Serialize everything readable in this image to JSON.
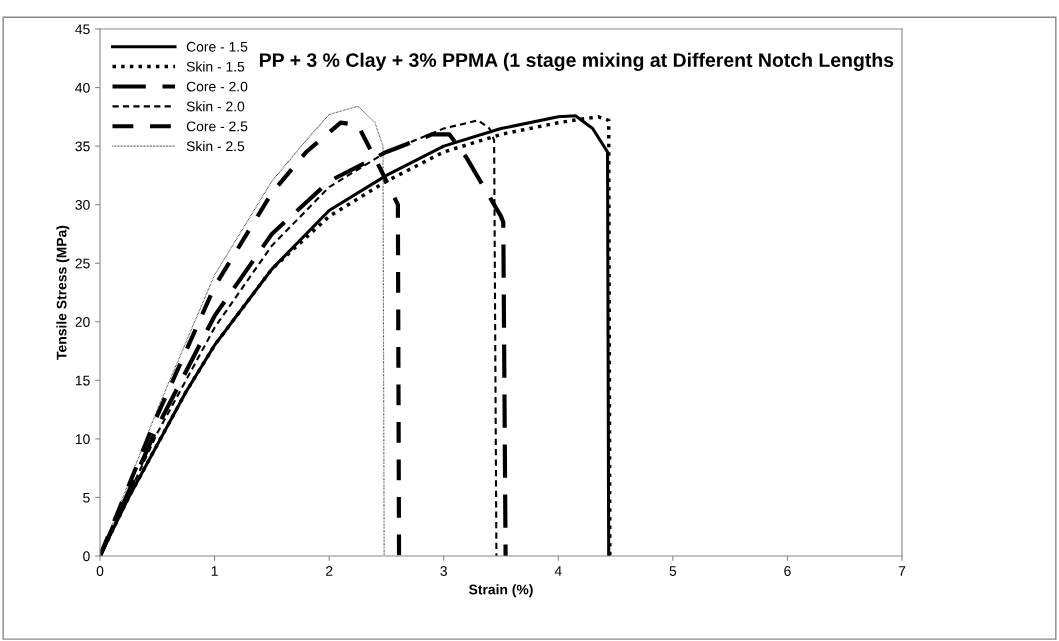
{
  "chart_data": {
    "type": "line",
    "title": "PP + 3 % Clay + 3% PPMA (1 stage mixing at Different Notch Lengths",
    "xlabel": "Strain (%)",
    "ylabel": "Tensile Stress (MPa)",
    "xlim": [
      0,
      7
    ],
    "xticks": [
      0,
      1,
      2,
      3,
      4,
      5,
      6,
      7
    ],
    "ylim": [
      0,
      45
    ],
    "yticks": [
      0,
      5,
      10,
      15,
      20,
      25,
      30,
      35,
      40,
      45
    ],
    "grid": false,
    "legend": "top left",
    "marker": "none",
    "series": [
      {
        "name": "Core - 1.5",
        "color": "#000000",
        "line_style": "solid",
        "x": [
          0,
          0.25,
          0.5,
          0.75,
          1,
          1.5,
          2,
          2.5,
          3,
          3.5,
          4,
          4.15,
          4.3,
          4.43,
          4.44
        ],
        "values": [
          0,
          5,
          9.5,
          14,
          18,
          24.5,
          29.5,
          32.5,
          35,
          36.5,
          37.5,
          37.6,
          36.5,
          34.5,
          0
        ]
      },
      {
        "name": "Skin - 1.5",
        "color": "#000000",
        "line_style": "dotted",
        "x": [
          0,
          0.25,
          0.5,
          0.75,
          1,
          1.5,
          2,
          2.5,
          3,
          3.5,
          4,
          4.2,
          4.35,
          4.44,
          4.45
        ],
        "values": [
          0,
          5,
          9.5,
          14,
          18,
          24.5,
          29,
          32,
          34.5,
          36,
          37,
          37.3,
          37.5,
          37.2,
          0
        ]
      },
      {
        "name": "Core - 2.0",
        "color": "#000000",
        "line_style": "dashed",
        "x": [
          0,
          0.25,
          0.5,
          1,
          1.5,
          2,
          2.5,
          2.9,
          3.05,
          3.2,
          3.5,
          3.52,
          3.54
        ],
        "values": [
          0,
          5.5,
          11,
          20.5,
          27.5,
          32,
          34.5,
          36,
          36,
          34,
          29,
          28.5,
          0
        ]
      },
      {
        "name": "Skin - 2.0",
        "color": "#000000",
        "line_style": "dashed",
        "x": [
          0,
          0.5,
          1,
          1.5,
          2,
          2.5,
          3,
          3.3,
          3.4,
          3.44,
          3.46
        ],
        "values": [
          0,
          10.5,
          19.5,
          26.5,
          31.5,
          34.5,
          36.5,
          37.2,
          36.5,
          35.5,
          0
        ]
      },
      {
        "name": "Core - 2.5",
        "color": "#000000",
        "line_style": "dashed",
        "x": [
          0,
          0.25,
          0.5,
          1,
          1.5,
          1.8,
          2.1,
          2.25,
          2.45,
          2.55,
          2.6,
          2.61
        ],
        "values": [
          0,
          6,
          12,
          23,
          31,
          34.5,
          37,
          36.8,
          33,
          31,
          30,
          0
        ]
      },
      {
        "name": "Skin - 2.5",
        "color": "#000000",
        "line_style": "dotted",
        "x": [
          0,
          0.5,
          1,
          1.5,
          1.8,
          2.0,
          2.25,
          2.4,
          2.47,
          2.48
        ],
        "values": [
          0,
          12.5,
          24,
          32,
          35.5,
          37.7,
          38.4,
          37,
          35,
          0
        ]
      }
    ]
  }
}
